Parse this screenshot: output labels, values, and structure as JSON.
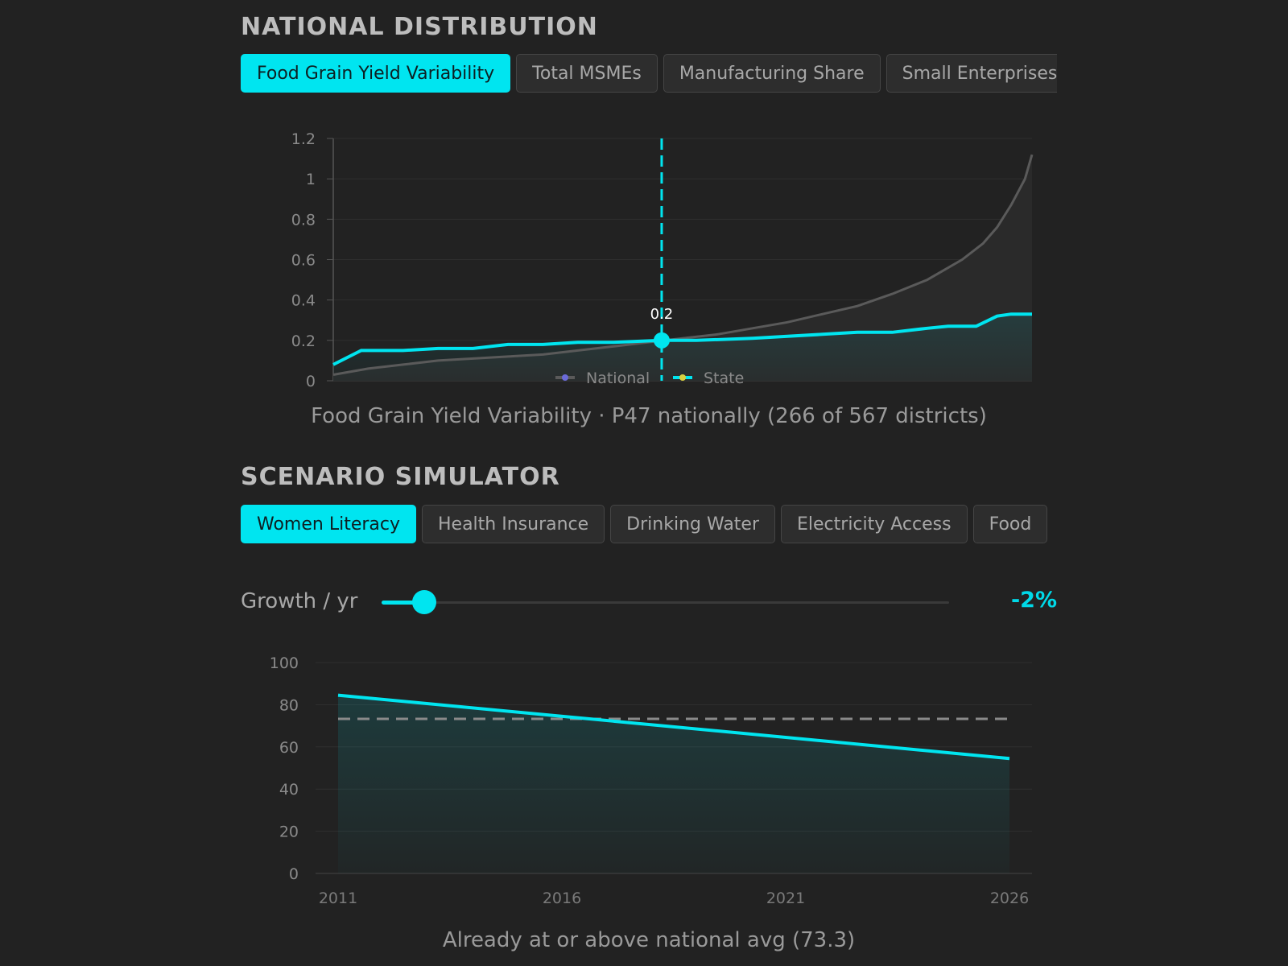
{
  "national": {
    "title": "NATIONAL DISTRIBUTION",
    "tabs": [
      {
        "label": "Food Grain Yield Variability",
        "active": true
      },
      {
        "label": "Total MSMEs",
        "active": false
      },
      {
        "label": "Manufacturing Share",
        "active": false
      },
      {
        "label": "Small Enterprises",
        "active": false
      }
    ],
    "caption": "Food Grain Yield Variability · P47 nationally (266 of 567 districts)"
  },
  "scenario": {
    "title": "SCENARIO SIMULATOR",
    "tabs": [
      {
        "label": "Women Literacy",
        "active": true
      },
      {
        "label": "Health Insurance",
        "active": false
      },
      {
        "label": "Drinking Water",
        "active": false
      },
      {
        "label": "Electricity Access",
        "active": false
      },
      {
        "label": "Food",
        "active": false
      }
    ],
    "slider": {
      "label": "Growth / yr",
      "value_text": "-2%",
      "fraction": 0.075
    },
    "caption": "Already at or above national avg (73.3)"
  },
  "colors": {
    "accent": "#00e5f0",
    "national_line": "#5a5a5a",
    "reference": "#8a8a8a",
    "national_legend_marker": "#6a6ad8",
    "state_legend_marker": "#d8d040"
  },
  "chart_data": [
    {
      "type": "line",
      "title": "",
      "xlabel": "",
      "ylabel": "",
      "ylim": [
        0,
        1.2
      ],
      "yticks": [
        "0",
        "0.2",
        "0.4",
        "0.6",
        "0.8",
        "1",
        "1.2"
      ],
      "grid": true,
      "legend": "bottom-center",
      "marker": {
        "percentile": 47,
        "value": 0.2,
        "label": "0.2"
      },
      "series": [
        {
          "name": "National",
          "x": [
            0,
            5,
            10,
            15,
            20,
            25,
            30,
            35,
            40,
            45,
            50,
            55,
            60,
            65,
            70,
            75,
            80,
            85,
            90,
            93,
            95,
            97,
            99,
            100
          ],
          "values": [
            0.03,
            0.06,
            0.08,
            0.1,
            0.11,
            0.12,
            0.13,
            0.15,
            0.17,
            0.19,
            0.21,
            0.23,
            0.26,
            0.29,
            0.33,
            0.37,
            0.43,
            0.5,
            0.6,
            0.68,
            0.76,
            0.87,
            1.0,
            1.12
          ]
        },
        {
          "name": "State",
          "x": [
            0,
            4,
            10,
            15,
            20,
            25,
            30,
            35,
            40,
            47,
            52,
            60,
            65,
            70,
            75,
            80,
            85,
            88,
            92,
            95,
            97,
            100
          ],
          "values": [
            0.08,
            0.15,
            0.15,
            0.16,
            0.16,
            0.18,
            0.18,
            0.19,
            0.19,
            0.2,
            0.2,
            0.21,
            0.22,
            0.23,
            0.24,
            0.24,
            0.26,
            0.27,
            0.27,
            0.32,
            0.33,
            0.33
          ]
        }
      ]
    },
    {
      "type": "area",
      "title": "",
      "xlabel": "",
      "ylabel": "",
      "ylim": [
        0,
        100
      ],
      "yticks": [
        "0",
        "20",
        "40",
        "60",
        "80",
        "100"
      ],
      "xticks": [
        "2011",
        "2016",
        "2021",
        "2026"
      ],
      "xlim": [
        2011,
        2026
      ],
      "grid": true,
      "reference_line": 73.3,
      "series": [
        {
          "x": [
            2011,
            2026
          ],
          "values": [
            84.5,
            54.5
          ]
        }
      ]
    }
  ]
}
